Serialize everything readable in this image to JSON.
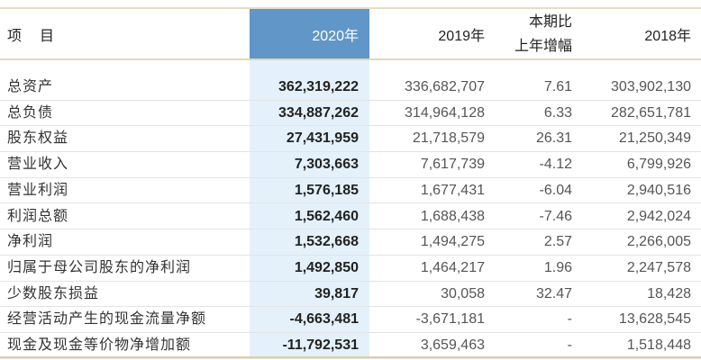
{
  "header": {
    "item": "项　目",
    "y2020": "2020年",
    "y2019": "2019年",
    "change_line1": "本期比",
    "change_line2": "上年增幅",
    "y2018": "2018年"
  },
  "rows": [
    {
      "label": "总资产",
      "v2020": "362,319,222",
      "v2019": "336,682,707",
      "change": "7.61",
      "v2018": "303,902,130"
    },
    {
      "label": "总负债",
      "v2020": "334,887,262",
      "v2019": "314,964,128",
      "change": "6.33",
      "v2018": "282,651,781"
    },
    {
      "label": "股东权益",
      "v2020": "27,431,959",
      "v2019": "21,718,579",
      "change": "26.31",
      "v2018": "21,250,349"
    },
    {
      "label": "营业收入",
      "v2020": "7,303,663",
      "v2019": "7,617,739",
      "change": "-4.12",
      "v2018": "6,799,926"
    },
    {
      "label": "营业利润",
      "v2020": "1,576,185",
      "v2019": "1,677,431",
      "change": "-6.04",
      "v2018": "2,940,516"
    },
    {
      "label": "利润总额",
      "v2020": "1,562,460",
      "v2019": "1,688,438",
      "change": "-7.46",
      "v2018": "2,942,024"
    },
    {
      "label": "净利润",
      "v2020": "1,532,668",
      "v2019": "1,494,275",
      "change": "2.57",
      "v2018": "2,266,005"
    },
    {
      "label": "归属于母公司股东的净利润",
      "v2020": "1,492,850",
      "v2019": "1,464,217",
      "change": "1.96",
      "v2018": "2,247,578"
    },
    {
      "label": "少数股东损益",
      "v2020": "39,817",
      "v2019": "30,058",
      "change": "32.47",
      "v2018": "18,428"
    },
    {
      "label": "经营活动产生的现金流量净额",
      "v2020": "-4,663,481",
      "v2019": "-3,671,181",
      "change": "-",
      "v2018": "13,628,545"
    },
    {
      "label": "现金及现金等价物净增加额",
      "v2020": "-11,792,531",
      "v2019": "3,659,463",
      "change": "-",
      "v2018": "1,518,448"
    }
  ]
}
